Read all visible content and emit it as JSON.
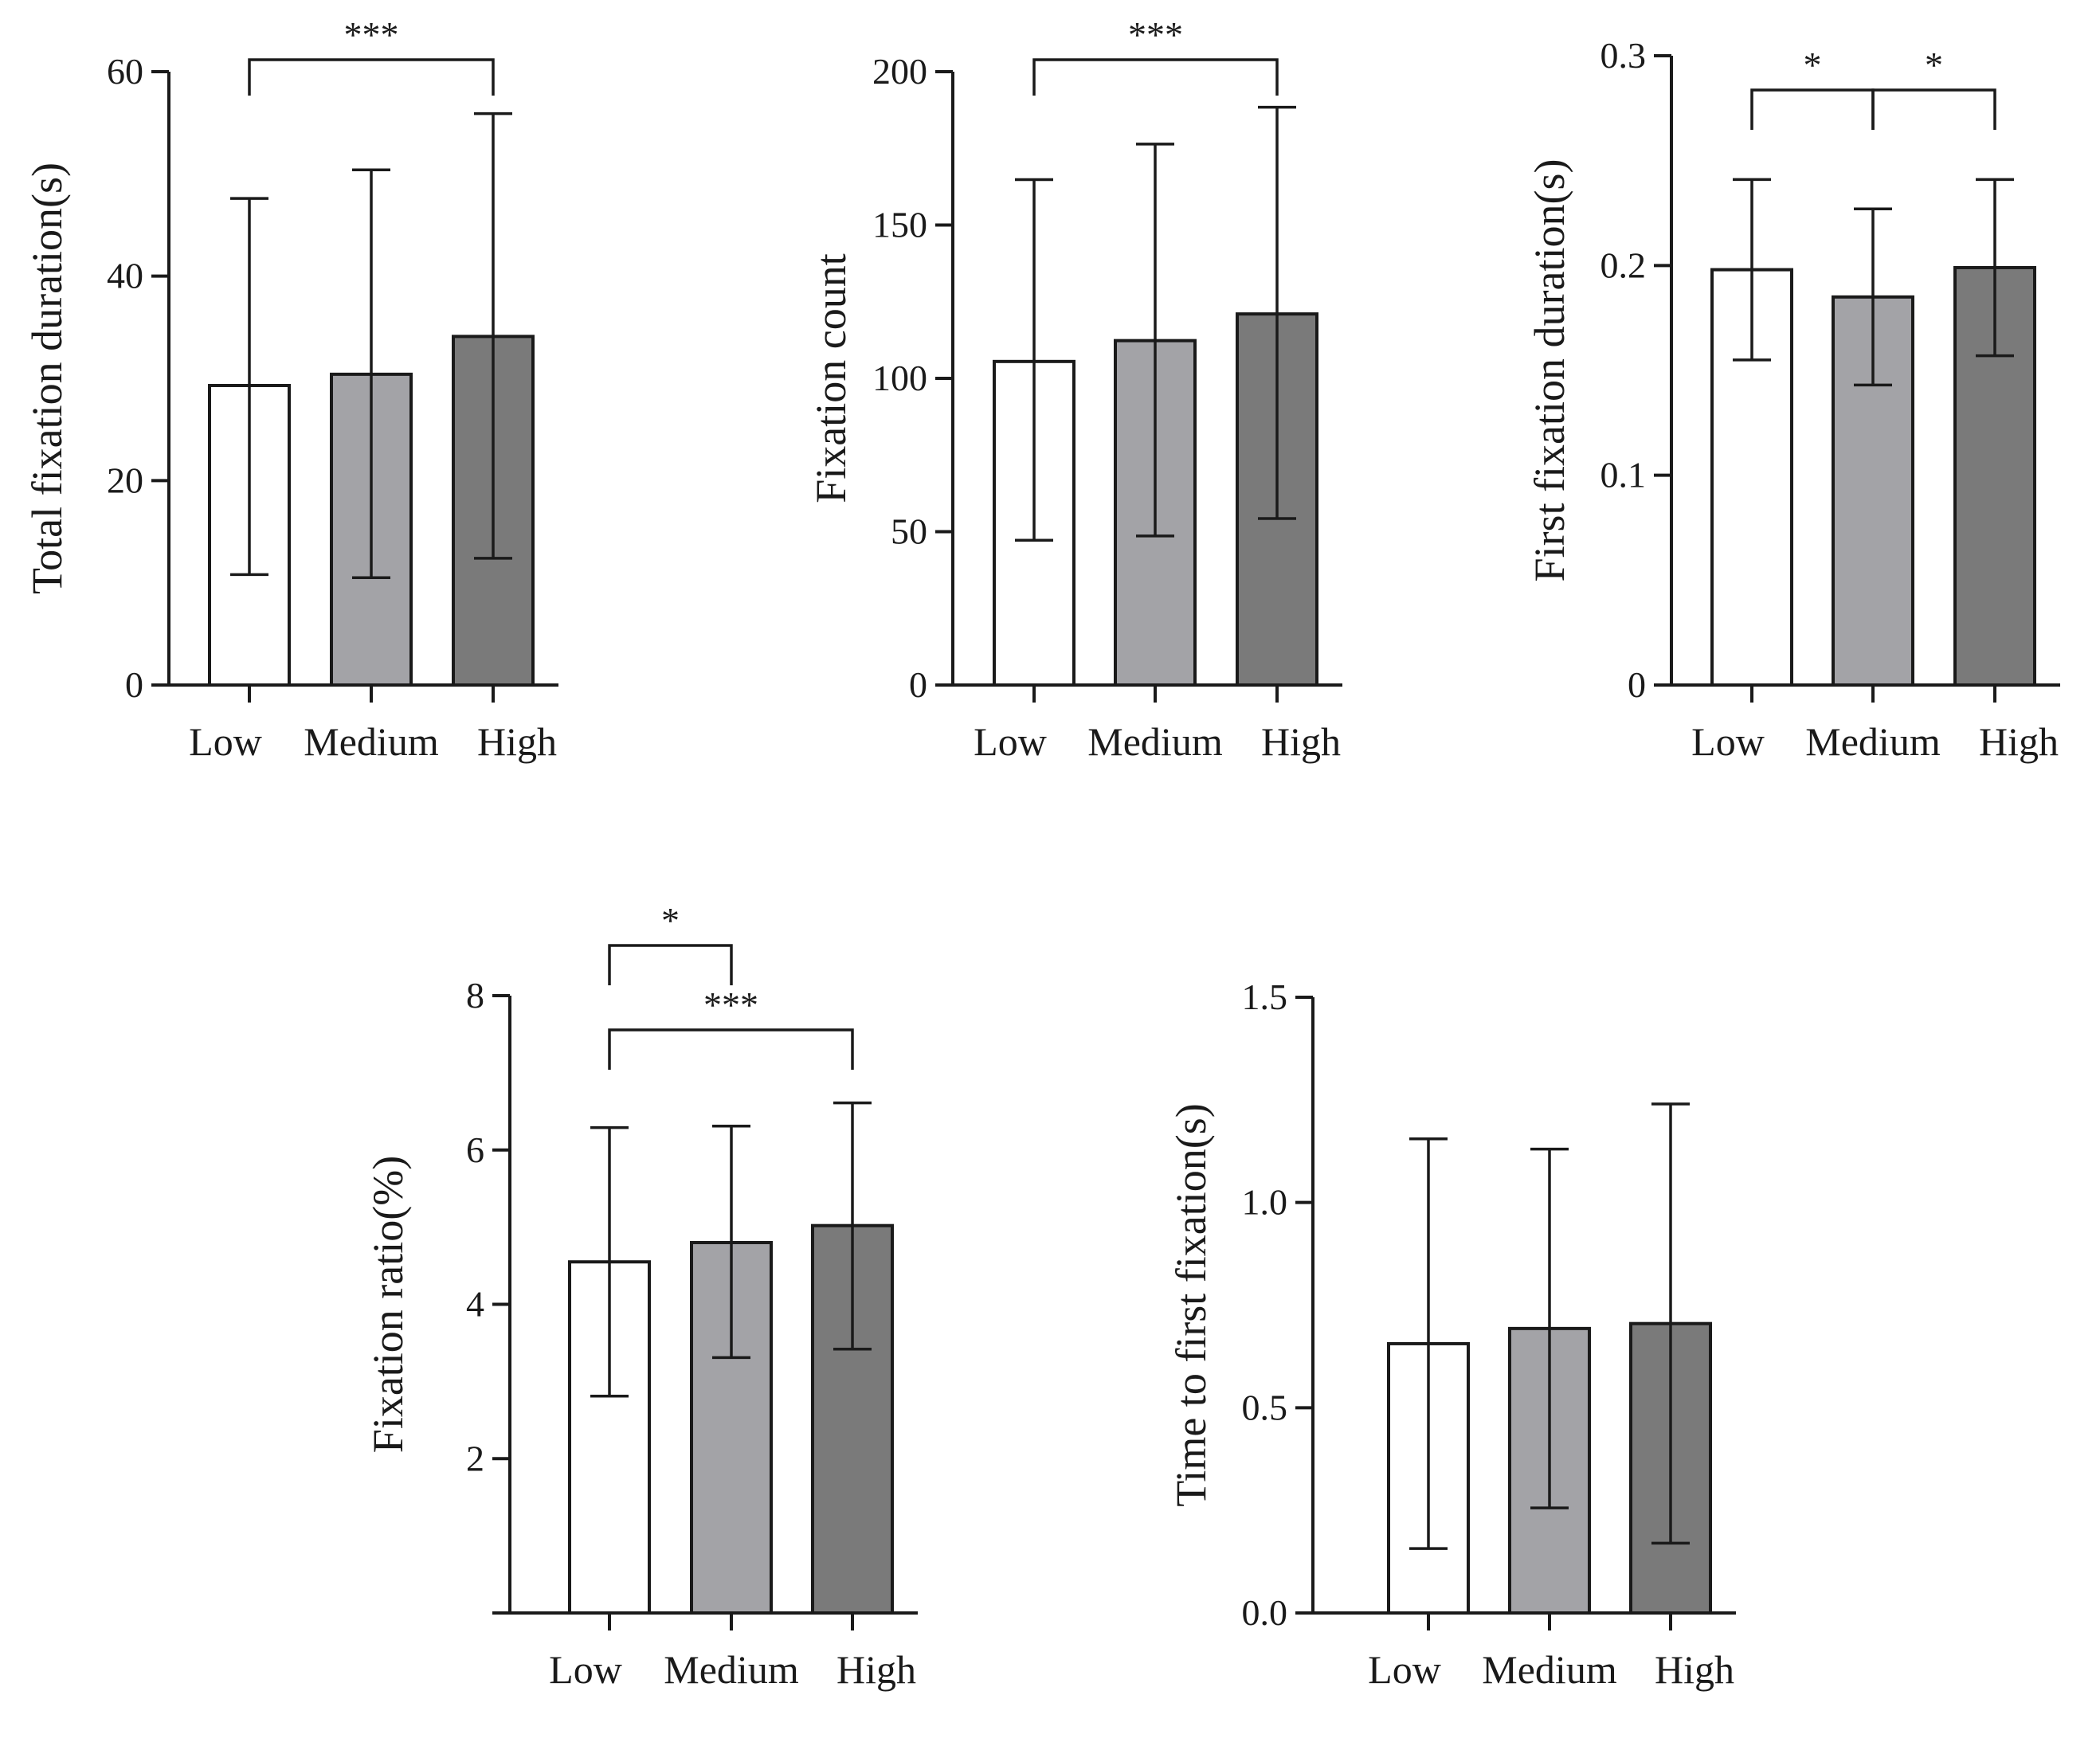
{
  "figure": {
    "fill_colors": [
      "#ffffff",
      "#a3a3a7",
      "#7a7a7a"
    ],
    "stroke_color": "#1a1a1a"
  },
  "chart_data": [
    {
      "type": "bar",
      "title": "",
      "xlabel": "",
      "ylabel": "Total fixation duration(s)",
      "categories": [
        "Low",
        "Medium",
        "High"
      ],
      "values": [
        29.3,
        30.4,
        34.1
      ],
      "error_upper": [
        47.6,
        50.4,
        55.9
      ],
      "error_lower": [
        10.8,
        10.5,
        12.4
      ],
      "ylim": [
        0,
        60
      ],
      "yticks": [
        0,
        20,
        40,
        60
      ],
      "ytick_labels": [
        "0",
        "20",
        "40",
        "60"
      ],
      "significance": [
        {
          "from": 0,
          "to": 2,
          "label": "***"
        }
      ]
    },
    {
      "type": "bar",
      "title": "",
      "xlabel": "",
      "ylabel": "Fixation count",
      "categories": [
        "Low",
        "Medium",
        "High"
      ],
      "values": [
        105.5,
        112.3,
        121.0
      ],
      "error_upper": [
        164.8,
        176.4,
        188.4
      ],
      "error_lower": [
        47.2,
        48.6,
        54.3
      ],
      "ylim": [
        0,
        200
      ],
      "yticks": [
        0,
        50,
        100,
        150,
        200
      ],
      "ytick_labels": [
        "0",
        "50",
        "100",
        "150",
        "200"
      ],
      "significance": [
        {
          "from": 0,
          "to": 2,
          "label": "***"
        }
      ]
    },
    {
      "type": "bar",
      "title": "",
      "xlabel": "",
      "ylabel": "First fixation duration(s)",
      "categories": [
        "Low",
        "Medium",
        "High"
      ],
      "values": [
        0.198,
        0.185,
        0.199
      ],
      "error_upper": [
        0.241,
        0.227,
        0.241
      ],
      "error_lower": [
        0.155,
        0.143,
        0.157
      ],
      "ylim": [
        0,
        0.3
      ],
      "yticks": [
        0,
        0.1,
        0.2,
        0.3
      ],
      "ytick_labels": [
        "0",
        "0.1",
        "0.2",
        "0.3"
      ],
      "significance": [
        {
          "from": 0,
          "to": 1,
          "label": "*"
        },
        {
          "from": 1,
          "to": 2,
          "label": "*"
        }
      ]
    },
    {
      "type": "bar",
      "title": "",
      "xlabel": "",
      "ylabel": "Fixation ratio(%)",
      "categories": [
        "Low",
        "Medium",
        "High"
      ],
      "values": [
        4.55,
        4.8,
        5.02
      ],
      "error_upper": [
        6.29,
        6.31,
        6.61
      ],
      "error_lower": [
        2.81,
        3.31,
        3.42
      ],
      "ylim": [
        0,
        8
      ],
      "yticks": [
        2,
        4,
        6,
        8
      ],
      "ytick_labels": [
        "2",
        "4",
        "6",
        "8"
      ],
      "significance": [
        {
          "from": 0,
          "to": 1,
          "label": "*"
        },
        {
          "from": 0,
          "to": 2,
          "label": "***"
        }
      ]
    },
    {
      "type": "bar",
      "title": "",
      "xlabel": "",
      "ylabel": "Time to first fixation(s)",
      "categories": [
        "Low",
        "Medium",
        "High"
      ],
      "values": [
        0.656,
        0.693,
        0.705
      ],
      "error_upper": [
        1.155,
        1.13,
        1.24
      ],
      "error_lower": [
        0.157,
        0.256,
        0.17
      ],
      "ylim": [
        0,
        1.5
      ],
      "yticks": [
        0,
        0.5,
        1.0,
        1.5
      ],
      "ytick_labels": [
        "0.0",
        "0.5",
        "1.0",
        "1.5"
      ],
      "significance": []
    }
  ]
}
